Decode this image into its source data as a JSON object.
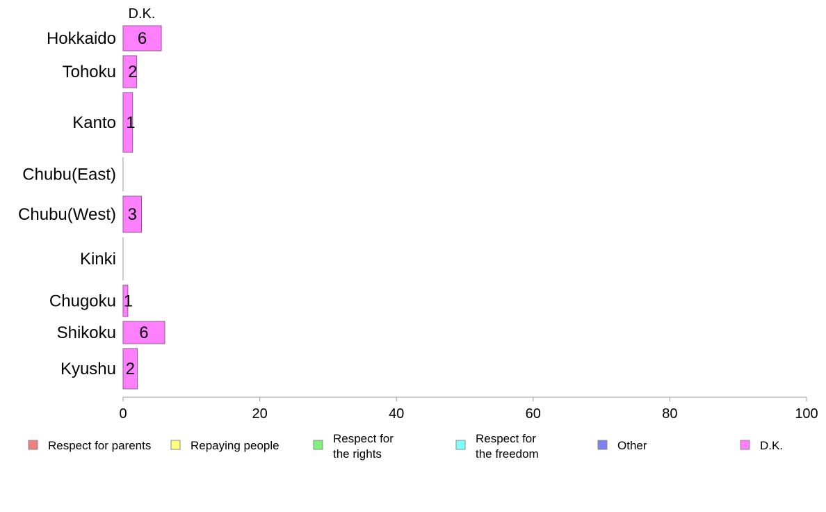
{
  "chart_data": {
    "type": "bar",
    "orientation": "horizontal",
    "stacked": true,
    "title": "",
    "xlabel": "",
    "ylabel": "",
    "xlim": [
      0,
      100
    ],
    "x_ticks": [
      "0",
      "20",
      "40",
      "60",
      "80",
      "100"
    ],
    "grid": false,
    "legend_placement": "bottom",
    "series_header": "D.K.",
    "categories": [
      "Hokkaido",
      "Tohoku",
      "Kanto",
      "Chubu(East)",
      "Chubu(West)",
      "Kinki",
      "Chugoku",
      "Shikoku",
      "Kyushu"
    ],
    "series": [
      {
        "name": "Respect for parents",
        "color": "#f08080",
        "values": [
          0,
          0,
          0,
          0,
          0,
          0,
          0,
          0,
          0
        ]
      },
      {
        "name": "Repaying people",
        "color": "#ffff80",
        "values": [
          0,
          0,
          0,
          0,
          0,
          0,
          0,
          0,
          0
        ]
      },
      {
        "name": "Respect for the rights",
        "label_lines": [
          "Respect for",
          "the rights"
        ],
        "color": "#80f080",
        "values": [
          0,
          0,
          0,
          0,
          0,
          0,
          0,
          0,
          0
        ]
      },
      {
        "name": "Respect for the freedom",
        "label_lines": [
          "Respect for",
          "the freedom"
        ],
        "color": "#80ffff",
        "values": [
          0,
          0,
          0,
          0,
          0,
          0,
          0,
          0,
          0
        ]
      },
      {
        "name": "Other",
        "color": "#8080f0",
        "values": [
          0,
          0,
          0,
          0,
          0,
          0,
          0,
          0,
          0
        ]
      },
      {
        "name": "D.K.",
        "color": "#ff80ff",
        "values": [
          5.6,
          2.0,
          1.4,
          0,
          2.7,
          0,
          0.7,
          6.1,
          2.1
        ]
      }
    ],
    "bar_labels": [
      "6",
      "2",
      "1",
      "",
      "3",
      "",
      "1",
      "6",
      "2"
    ]
  }
}
